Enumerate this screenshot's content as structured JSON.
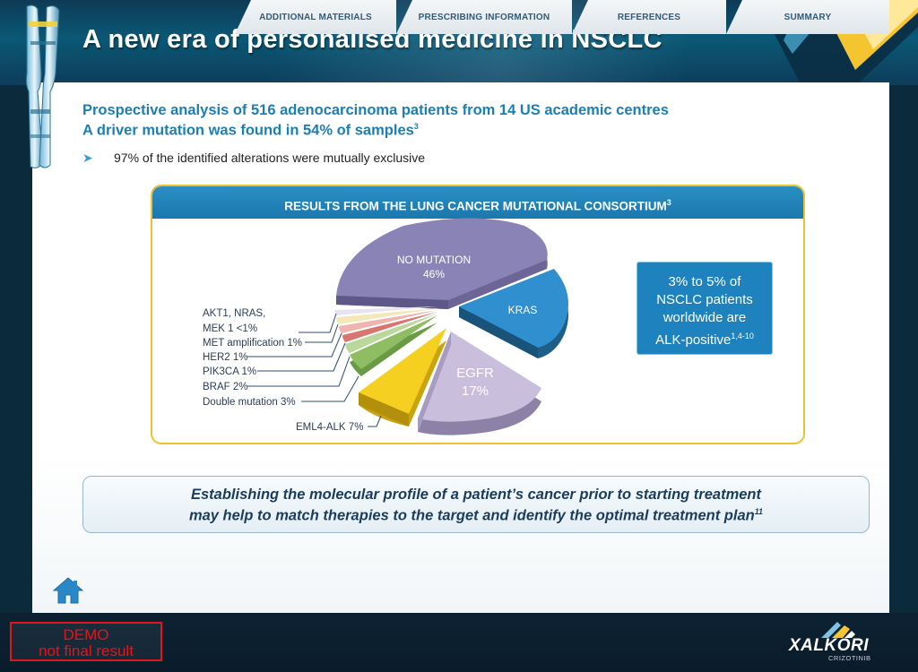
{
  "header": {
    "title": "A new era of personalised medicine in NSCLC"
  },
  "intro": {
    "line1": "Prospective analysis of 516 adenocarcinoma patients from 14 US academic centres",
    "line2": "A driver mutation was found in 54% of samples",
    "line2_ref": "3",
    "bullet_arrow": "➤",
    "bullet": "97% of the identified alterations were mutually exclusive"
  },
  "chart": {
    "heading": "RESULTS FROM THE LUNG CANCER MUTATIONAL CONSORTIUM",
    "heading_ref": "3",
    "callout_lines": [
      "3% to 5% of",
      "NSCLC patients",
      "worldwide are",
      "ALK-positive"
    ],
    "callout_ref": "1,4-10"
  },
  "chart_data": {
    "type": "pie",
    "title": "RESULTS FROM THE LUNG CANCER MUTATIONAL CONSORTIUM",
    "slices": [
      {
        "label_lines": [
          "NO MUTATION",
          "46%"
        ],
        "value": 46,
        "color": "#8a83b5"
      },
      {
        "label_lines": [
          "KRAS"
        ],
        "value": 22,
        "color": "#2f8fcf"
      },
      {
        "label_lines": [
          "EGFR",
          "17%"
        ],
        "value": 17,
        "color": "#c9bedc"
      },
      {
        "label_lines": [
          "EML4-ALK 7%"
        ],
        "value": 7,
        "color": "#f5d021"
      },
      {
        "label_lines": [
          "Double mutation 3%"
        ],
        "value": 3,
        "color": "#8fbd63"
      },
      {
        "label_lines": [
          "BRAF 2%"
        ],
        "value": 2,
        "color": "#b9d89a"
      },
      {
        "label_lines": [
          "PIK3CA 1%"
        ],
        "value": 1,
        "color": "#d8756e"
      },
      {
        "label_lines": [
          "HER2 1%"
        ],
        "value": 1,
        "color": "#efb4ad"
      },
      {
        "label_lines": [
          "MET amplification 1%"
        ],
        "value": 1,
        "color": "#f2e8b8"
      },
      {
        "label_lines": [
          "AKT1, NRAS,",
          "MEK 1 <1%"
        ],
        "value": 0.5,
        "color": "#e9e2ef"
      }
    ]
  },
  "conclusion": {
    "line1": "Establishing the molecular profile of a patient’s cancer prior to starting treatment",
    "line2": "may help to match therapies to the target and identify the optimal treatment plan",
    "line2_ref": "11"
  },
  "nav": {
    "tabs": [
      "ADDITIONAL MATERIALS",
      "PRESCRIBING INFORMATION",
      "REFERENCES",
      "SUMMARY"
    ]
  },
  "footer": {
    "demo_line1": "DEMO",
    "demo_line2": "not final result",
    "brand": "XALKORI",
    "brand_sub": "CRIZOTINIB"
  },
  "colors": {
    "accent_blue": "#1c7fb4",
    "chart_border": "#f0c02e",
    "demo_red": "#e0161b"
  }
}
